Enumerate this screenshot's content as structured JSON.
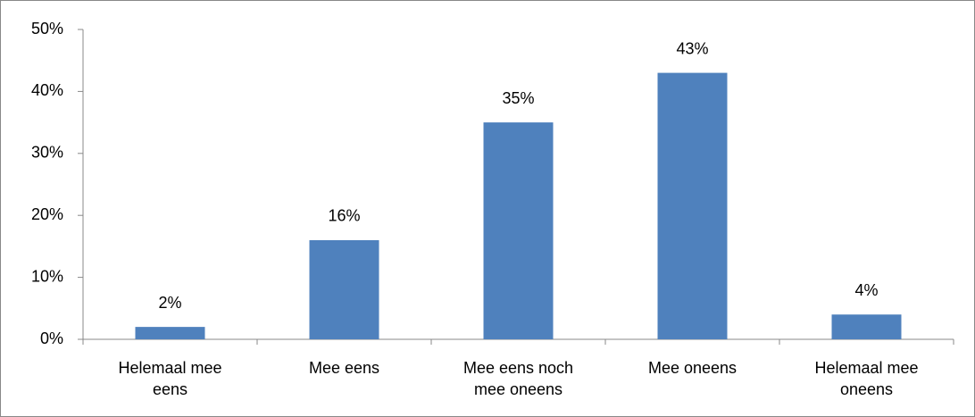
{
  "chart_data": {
    "type": "bar",
    "categories": [
      "Helemaal mee eens",
      "Mee eens",
      "Mee eens noch mee oneens",
      "Mee oneens",
      "Helemaal mee oneens"
    ],
    "values": [
      2,
      16,
      35,
      43,
      4
    ],
    "value_labels": [
      "2%",
      "16%",
      "35%",
      "43%",
      "4%"
    ],
    "color": "#4f81bd",
    "ylim": [
      0,
      50
    ],
    "yticks": [
      {
        "value": 0,
        "label": "0%"
      },
      {
        "value": 10,
        "label": "10%"
      },
      {
        "value": 20,
        "label": "20%"
      },
      {
        "value": 30,
        "label": "30%"
      },
      {
        "value": 40,
        "label": "40%"
      },
      {
        "value": 50,
        "label": "50%"
      }
    ],
    "grid": false
  }
}
